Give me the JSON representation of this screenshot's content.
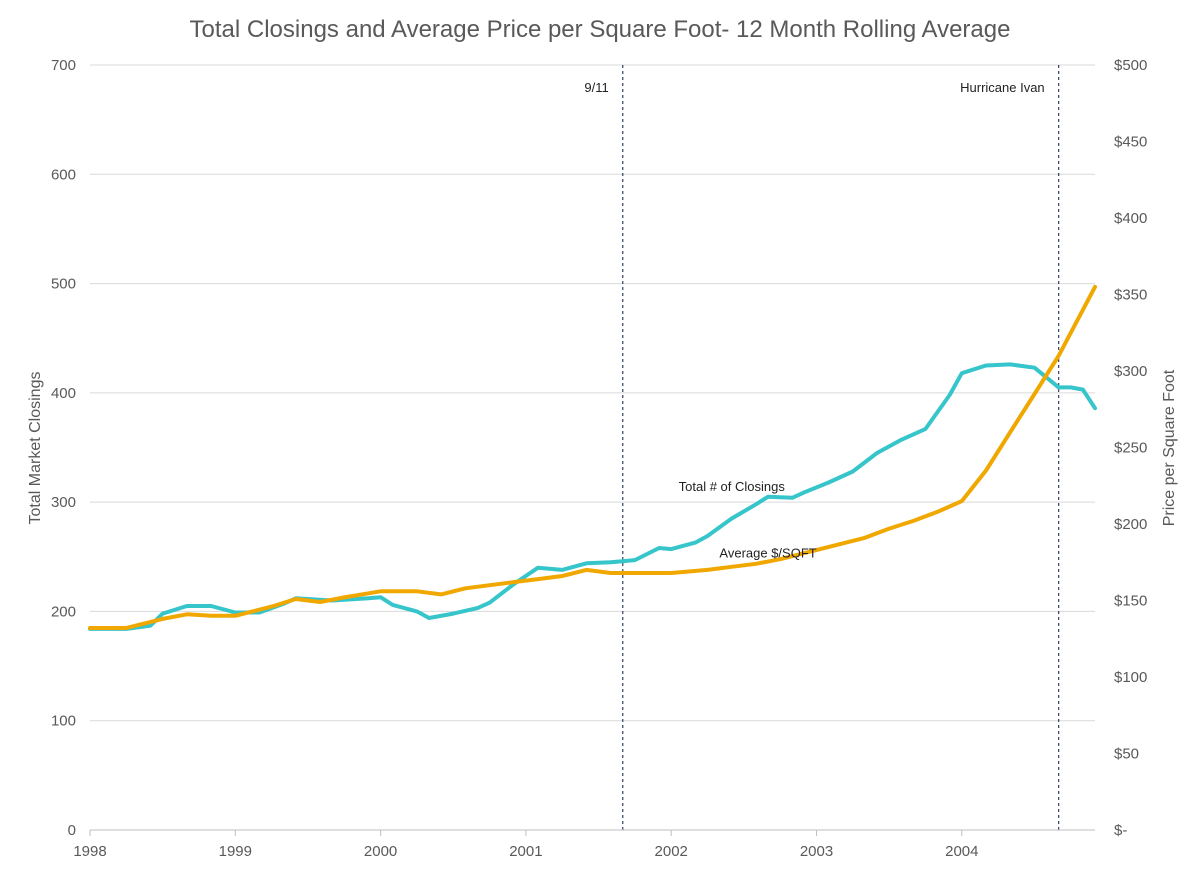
{
  "chart_data": {
    "type": "line",
    "title": "Total Closings and Average Price per Square Foot- 12 Month Rolling Average",
    "ylabel_left": "Total Market Closings",
    "ylabel_right": "Price per Square Foot",
    "ylim_left": [
      0,
      700
    ],
    "ylim_right": [
      0,
      500
    ],
    "yticks_left": [
      "0",
      "100",
      "200",
      "300",
      "400",
      "500",
      "600",
      "700"
    ],
    "yticks_right": [
      "$-",
      "$50",
      "$100",
      "$150",
      "$200",
      "$250",
      "$300",
      "$350",
      "$400",
      "$450",
      "$500"
    ],
    "xlim": [
      "1998-01",
      "2004-12"
    ],
    "xticks": [
      "1998",
      "1999",
      "2000",
      "2001",
      "2002",
      "2003",
      "2004"
    ],
    "grid": true,
    "colors": {
      "closings": "#36c5cb",
      "price": "#f0a800"
    },
    "series": [
      {
        "name": "Total # of Closings",
        "axis": "left",
        "x": [
          "1998-01",
          "1998-04",
          "1998-06",
          "1998-07",
          "1998-09",
          "1998-11",
          "1999-01",
          "1999-03",
          "1999-05",
          "1999-06",
          "1999-09",
          "1999-12",
          "2000-01",
          "2000-02",
          "2000-04",
          "2000-05",
          "2000-07",
          "2000-09",
          "2000-10",
          "2000-12",
          "2001-02",
          "2001-04",
          "2001-06",
          "2001-08",
          "2001-10",
          "2001-12",
          "2002-01",
          "2002-03",
          "2002-04",
          "2002-06",
          "2002-08",
          "2002-09",
          "2002-11",
          "2002-12",
          "2003-02",
          "2003-04",
          "2003-06",
          "2003-08",
          "2003-10",
          "2003-12",
          "2004-01",
          "2004-03",
          "2004-05",
          "2004-07",
          "2004-09",
          "2004-10",
          "2004-11",
          "2004-12"
        ],
        "values": [
          184,
          184,
          187,
          198,
          205,
          205,
          199,
          199,
          207,
          212,
          210,
          212,
          213,
          206,
          200,
          194,
          198,
          203,
          208,
          225,
          240,
          238,
          244,
          245,
          247,
          258,
          257,
          263,
          269,
          285,
          298,
          305,
          304,
          309,
          318,
          328,
          345,
          357,
          367,
          398,
          418,
          425,
          426,
          423,
          405,
          405,
          403,
          386
        ]
      },
      {
        "name": "Average $/SQFT",
        "axis": "right",
        "x": [
          "1998-01",
          "1998-04",
          "1998-07",
          "1998-09",
          "1998-11",
          "1999-01",
          "1999-04",
          "1999-06",
          "1999-08",
          "1999-10",
          "2000-01",
          "2000-04",
          "2000-06",
          "2000-08",
          "2000-10",
          "2000-12",
          "2001-02",
          "2001-04",
          "2001-06",
          "2001-08",
          "2001-10",
          "2001-12",
          "2002-01",
          "2002-04",
          "2002-06",
          "2002-08",
          "2002-10",
          "2002-12",
          "2003-03",
          "2003-05",
          "2003-07",
          "2003-09",
          "2003-11",
          "2004-01",
          "2004-03",
          "2004-05",
          "2004-07",
          "2004-09",
          "2004-11",
          "2004-12"
        ],
        "values": [
          132,
          132,
          138,
          141,
          140,
          140,
          146,
          151,
          149,
          152,
          156,
          156,
          154,
          158,
          160,
          162,
          164,
          166,
          170,
          168,
          168,
          168,
          168,
          170,
          172,
          174,
          177,
          181,
          187,
          191,
          197,
          202,
          208,
          215,
          235,
          260,
          285,
          310,
          340,
          355
        ]
      }
    ],
    "annotations": [
      {
        "label": "9/11",
        "x": "2001-09"
      },
      {
        "label": "Hurricane Ivan",
        "x": "2004-09"
      },
      {
        "label": "Total # of Closings",
        "x": "2002-06",
        "y": 310,
        "axis": "left"
      },
      {
        "label": "Average $/SQFT",
        "x": "2002-09",
        "y": 178,
        "axis": "right"
      }
    ]
  }
}
